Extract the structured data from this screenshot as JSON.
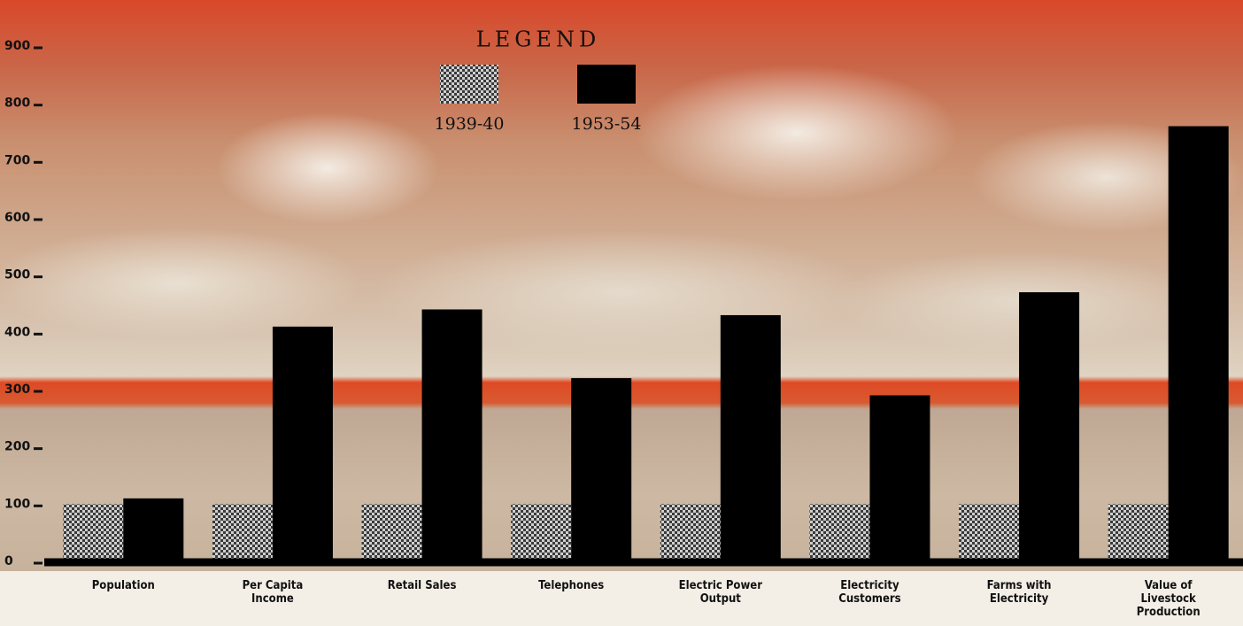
{
  "chart_data": {
    "type": "bar",
    "legend_title": "LEGEND",
    "categories": [
      "Population",
      "Per Capita Income",
      "Retail Sales",
      "Telephones",
      "Electric Power Output",
      "Electricity Customers",
      "Farms with Electricity",
      "Value of Livestock Production"
    ],
    "series": [
      {
        "name": "1939-40",
        "color": "#3a3a3a",
        "pattern": "checker",
        "values": [
          100,
          100,
          100,
          100,
          100,
          100,
          100,
          100
        ]
      },
      {
        "name": "1953-54",
        "color": "#000000",
        "values": [
          110,
          410,
          440,
          320,
          430,
          290,
          470,
          760
        ]
      }
    ],
    "ylim": [
      0,
      900
    ],
    "yticks": [
      0,
      100,
      200,
      300,
      400,
      500,
      600,
      700,
      800,
      900
    ],
    "grid": false
  }
}
